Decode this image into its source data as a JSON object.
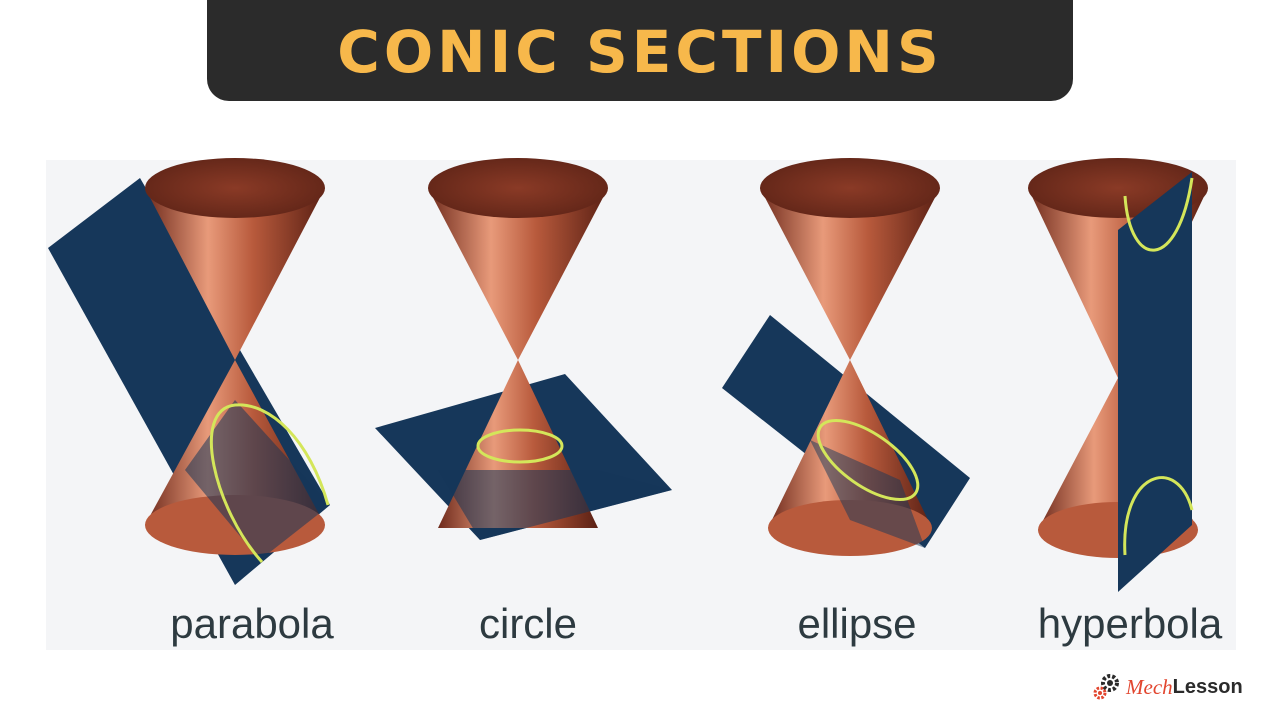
{
  "header": {
    "title": "CONIC SECTIONS"
  },
  "figures": [
    {
      "id": "parabola",
      "label": "parabola"
    },
    {
      "id": "circle",
      "label": "circle"
    },
    {
      "id": "ellipse",
      "label": "ellipse"
    },
    {
      "id": "hyperbola",
      "label": "hyperbola"
    }
  ],
  "colors": {
    "title_bar": "#2b2b2b",
    "title_text": "#f7b84b",
    "cone_light": "#e89a7a",
    "cone_mid": "#b85a3c",
    "cone_dark": "#6e2a1c",
    "plane": "#16375a",
    "curve": "#d4e65a",
    "brand_red": "#e2462f"
  },
  "brand": {
    "part1": "Mech",
    "part2": "Lesson",
    "icon": "gears-icon"
  }
}
